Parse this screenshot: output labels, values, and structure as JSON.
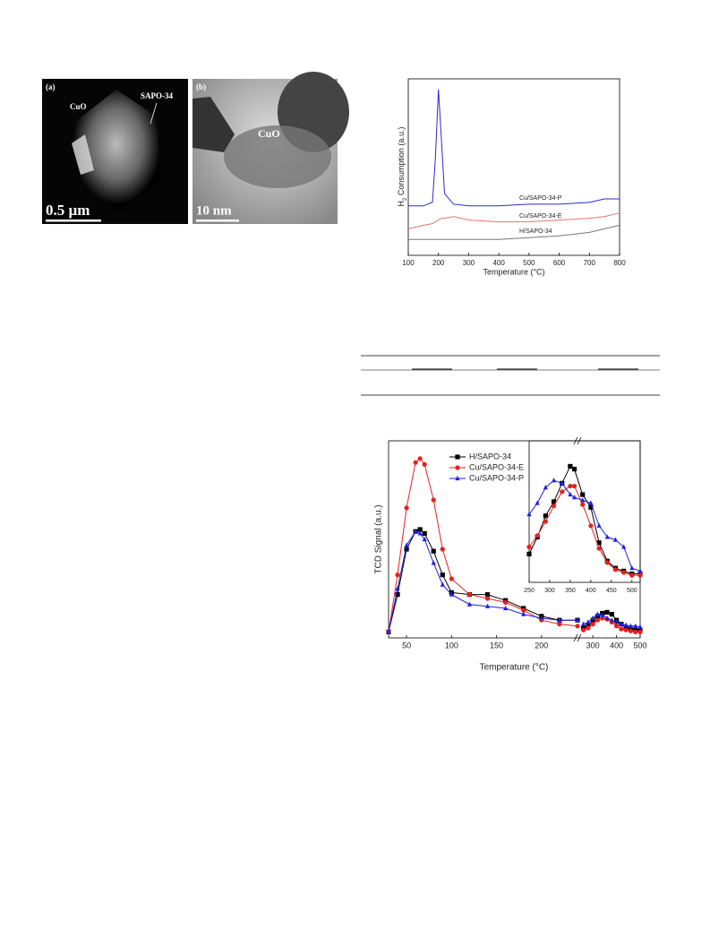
{
  "micrographs": {
    "panel_a": "(a)",
    "panel_b": "(b)",
    "label_cuo_a": "CuO",
    "label_sapo": "SAPO-34",
    "scale_a": "0.5 µm",
    "label_cuo_b": "CuO",
    "scale_b": "10 nm"
  },
  "chart_data": [
    {
      "type": "line",
      "x_label": "Temperature (°C)",
      "y_label_main": "H",
      "y_label_sub": "2",
      "y_label_rest": " Consumption (a.u.)",
      "xlim": [
        100,
        800
      ],
      "xticks": [
        100,
        200,
        300,
        400,
        500,
        600,
        700,
        800
      ],
      "ylim": [
        0,
        100
      ],
      "x": [
        100,
        150,
        180,
        190,
        200,
        210,
        220,
        250,
        300,
        400,
        500,
        600,
        700,
        750,
        800
      ],
      "series": [
        {
          "name": "Cu/SAPO-34-P",
          "color": "#2b2bd0",
          "values": [
            28,
            28,
            30,
            55,
            94,
            65,
            35,
            29,
            28,
            28,
            29,
            29,
            30,
            32,
            32
          ]
        },
        {
          "name": "Cu/SAPO-34-E",
          "color": "#e57373",
          "values": [
            15,
            17,
            18,
            19,
            20,
            21,
            21,
            22,
            20,
            19,
            19,
            20,
            21,
            22,
            24
          ]
        },
        {
          "name": "H/SAPO-34",
          "color": "#777777",
          "values": [
            9,
            9,
            9,
            9,
            9,
            9,
            9,
            9,
            9,
            9,
            10,
            11,
            13,
            15,
            17
          ]
        }
      ]
    },
    {
      "type": "line",
      "x_label": "Temperature (°C)",
      "y_label": "TCD Signal (a.u.)",
      "xlim": [
        30,
        500
      ],
      "x_break": [
        240,
        250
      ],
      "xticks": [
        50,
        100,
        150,
        200,
        300,
        400,
        500
      ],
      "ylim": [
        0,
        100
      ],
      "legend": "upper left",
      "x": [
        30,
        40,
        50,
        60,
        65,
        70,
        80,
        90,
        100,
        120,
        140,
        160,
        180,
        200,
        220,
        240,
        260,
        280,
        300,
        320,
        340,
        360,
        380,
        400,
        420,
        440,
        460,
        480,
        500
      ],
      "series": [
        {
          "name": "H/SAPO-34",
          "color": "#000000",
          "marker": "square",
          "values": [
            3,
            22,
            45,
            54,
            55,
            53,
            44,
            32,
            23,
            22,
            22,
            19,
            15,
            11,
            9,
            9,
            5,
            6,
            9,
            11,
            12.5,
            13,
            12,
            9,
            7,
            5,
            4.5,
            4,
            4
          ]
        },
        {
          "name": "Cu/SAPO-34-E",
          "color": "#e8201f",
          "marker": "circle",
          "values": [
            3,
            32,
            66,
            89,
            91,
            88,
            70,
            45,
            30,
            22,
            20,
            18,
            14,
            9,
            7,
            6,
            4,
            5,
            7,
            9,
            10,
            9.5,
            8,
            6,
            4.5,
            4,
            3.5,
            3,
            3
          ]
        },
        {
          "name": "Cu/SAPO-34-P",
          "color": "#1f1fe6",
          "marker": "triangle",
          "values": [
            3,
            25,
            47,
            54,
            53,
            50,
            38,
            27,
            22,
            17,
            16,
            15,
            12,
            10,
            9,
            9,
            7,
            8,
            10,
            12,
            11.5,
            10,
            9,
            8,
            7,
            6.5,
            6,
            6,
            5.5
          ]
        }
      ],
      "inset": {
        "xlim": [
          250,
          520
        ],
        "xticks": [
          250,
          300,
          350,
          400,
          450,
          500
        ],
        "ylim": [
          0,
          100
        ],
        "x": [
          250,
          270,
          290,
          310,
          330,
          350,
          360,
          380,
          400,
          420,
          440,
          460,
          480,
          500,
          520
        ],
        "series": [
          {
            "values": [
              20,
              32,
              47,
              57,
              70,
              82,
              80,
              62,
              53,
              28,
              15,
              10,
              8,
              6,
              6
            ]
          },
          {
            "values": [
              25,
              33,
              43,
              54,
              64,
              68,
              68,
              55,
              40,
              24,
              14,
              9,
              7,
              5,
              5
            ]
          },
          {
            "values": [
              48,
              56,
              67,
              72,
              70,
              62,
              60,
              58,
              56,
              40,
              32,
              30,
              25,
              10,
              8
            ]
          }
        ]
      }
    }
  ]
}
